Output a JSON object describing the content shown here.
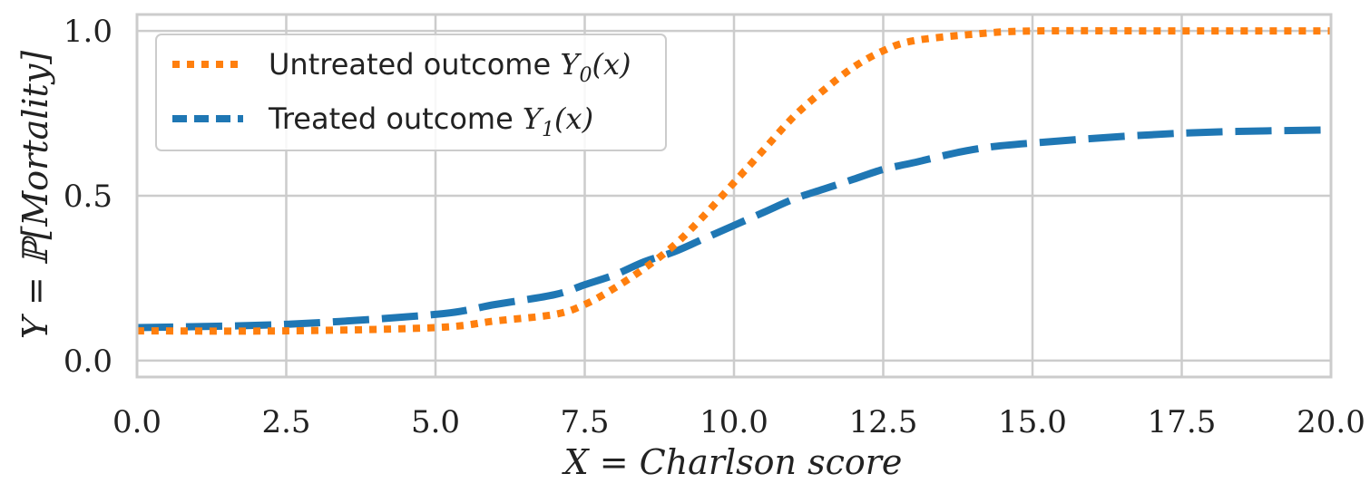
{
  "chart_data": {
    "type": "line",
    "xlabel": "X = Charlson score",
    "ylabel": "Y = ℙ[Mortality]",
    "xlim": [
      0,
      20
    ],
    "ylim": [
      -0.05,
      1.05
    ],
    "xticks": [
      "0.0",
      "2.5",
      "5.0",
      "7.5",
      "10.0",
      "12.5",
      "15.0",
      "17.5",
      "20.0"
    ],
    "yticks": [
      "0.0",
      "0.5",
      "1.0"
    ],
    "grid": true,
    "legend_position": "top-left",
    "series": [
      {
        "name": "Untreated outcome Y0(x)",
        "label_text": "Untreated outcome ",
        "label_math": "Y",
        "label_sub": "0",
        "label_tail": "(x)",
        "color": "#ff7f0e",
        "style": "dotted",
        "x": [
          0,
          2.5,
          5,
          6,
          7,
          7.5,
          8,
          8.5,
          9,
          9.5,
          10,
          10.5,
          11,
          11.5,
          12,
          12.5,
          13,
          14,
          15,
          17.5,
          20
        ],
        "y": [
          0.09,
          0.09,
          0.1,
          0.12,
          0.14,
          0.17,
          0.22,
          0.28,
          0.35,
          0.44,
          0.54,
          0.64,
          0.74,
          0.82,
          0.89,
          0.94,
          0.97,
          0.99,
          1.0,
          1.0,
          1.0
        ]
      },
      {
        "name": "Treated outcome Y1(x)",
        "label_text": "Treated outcome ",
        "label_math": "Y",
        "label_sub": "1",
        "label_tail": "(x)",
        "color": "#1f77b4",
        "style": "dashed",
        "x": [
          0,
          2.5,
          5,
          6,
          7,
          7.5,
          8,
          8.5,
          9,
          9.5,
          10,
          10.5,
          11,
          11.5,
          12,
          12.5,
          13,
          14,
          15,
          17.5,
          20
        ],
        "y": [
          0.1,
          0.11,
          0.14,
          0.17,
          0.2,
          0.23,
          0.26,
          0.3,
          0.33,
          0.37,
          0.41,
          0.45,
          0.49,
          0.52,
          0.55,
          0.58,
          0.6,
          0.64,
          0.66,
          0.69,
          0.7
        ]
      }
    ]
  }
}
